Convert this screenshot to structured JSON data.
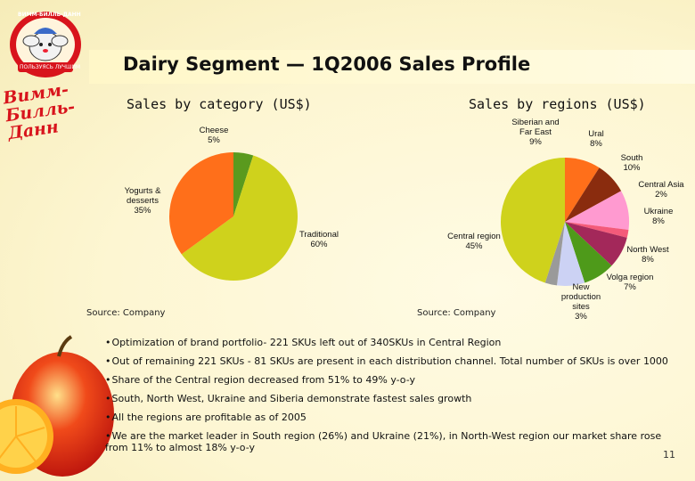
{
  "slide": {
    "title": "Dairy Segment — 1Q2006 Sales Profile",
    "page_number": "11",
    "logo_top_text": "ВИММ-БИЛЛЬ-ДАНН",
    "logo_top_ribbon": "ПОЛЬЗУЯСЬ ЛУЧШИМ",
    "logo_brand_text": "Вимм-Билль-Данн",
    "brand_color": "#d8141c"
  },
  "chart_data": [
    {
      "type": "pie",
      "title": "Sales by category (US$)",
      "source": "Source: Company",
      "slices": [
        {
          "label": "Cheese",
          "value": 5,
          "color": "#5a9a1e"
        },
        {
          "label": "Traditional",
          "value": 60,
          "color": "#cfd21c"
        },
        {
          "label": "Yogurts & desserts",
          "value": 35,
          "color": "#ff6f1a"
        }
      ],
      "labels": [
        {
          "lines": [
            "Cheese",
            "5%"
          ]
        },
        {
          "lines": [
            "Traditional",
            "60%"
          ]
        },
        {
          "lines": [
            "Yogurts &",
            "desserts",
            "35%"
          ]
        }
      ]
    },
    {
      "type": "pie",
      "title": "Sales by regions (US$)",
      "source": "Source: Company",
      "slices": [
        {
          "label": "Siberian and Far East",
          "value": 9,
          "color": "#ff6f1a"
        },
        {
          "label": "Ural",
          "value": 8,
          "color": "#8a2c0e"
        },
        {
          "label": "South",
          "value": 10,
          "color": "#ff9ad0"
        },
        {
          "label": "Central Asia",
          "value": 2,
          "color": "#f45a7a"
        },
        {
          "label": "Ukraine",
          "value": 8,
          "color": "#a3285a"
        },
        {
          "label": "North West",
          "value": 8,
          "color": "#4e9a1a"
        },
        {
          "label": "Volga region",
          "value": 7,
          "color": "#ccd2f4"
        },
        {
          "label": "New production sites",
          "value": 3,
          "color": "#9a9a9a"
        },
        {
          "label": "Central region",
          "value": 45,
          "color": "#cfd21c"
        }
      ],
      "labels": [
        {
          "lines": [
            "Siberian and",
            "Far East",
            "9%"
          ]
        },
        {
          "lines": [
            "Ural",
            "8%"
          ]
        },
        {
          "lines": [
            "South",
            "10%"
          ]
        },
        {
          "lines": [
            "Central Asia",
            "2%"
          ]
        },
        {
          "lines": [
            "Ukraine",
            "8%"
          ]
        },
        {
          "lines": [
            "North West",
            "8%"
          ]
        },
        {
          "lines": [
            "Volga region",
            "7%"
          ]
        },
        {
          "lines": [
            "New",
            "production",
            "sites",
            "3%"
          ]
        },
        {
          "lines": [
            "Central region",
            "45%"
          ]
        }
      ]
    }
  ],
  "bullets": [
    "Optimization of brand portfolio- 221 SKUs left out of 340SKUs in Central Region",
    "Out of remaining 221 SKUs - 81 SKUs are present in each distribution channel. Total number of SKUs is over 1000",
    "Share of the Central region decreased from 51% to 49% y-o-y",
    "South, North West, Ukraine and Siberia demonstrate fastest sales growth",
    "All the regions are profitable as of 2005",
    "We are the market leader in South region (26%) and Ukraine (21%), in North-West region our market share rose from 11% to almost 18% y-o-y"
  ]
}
